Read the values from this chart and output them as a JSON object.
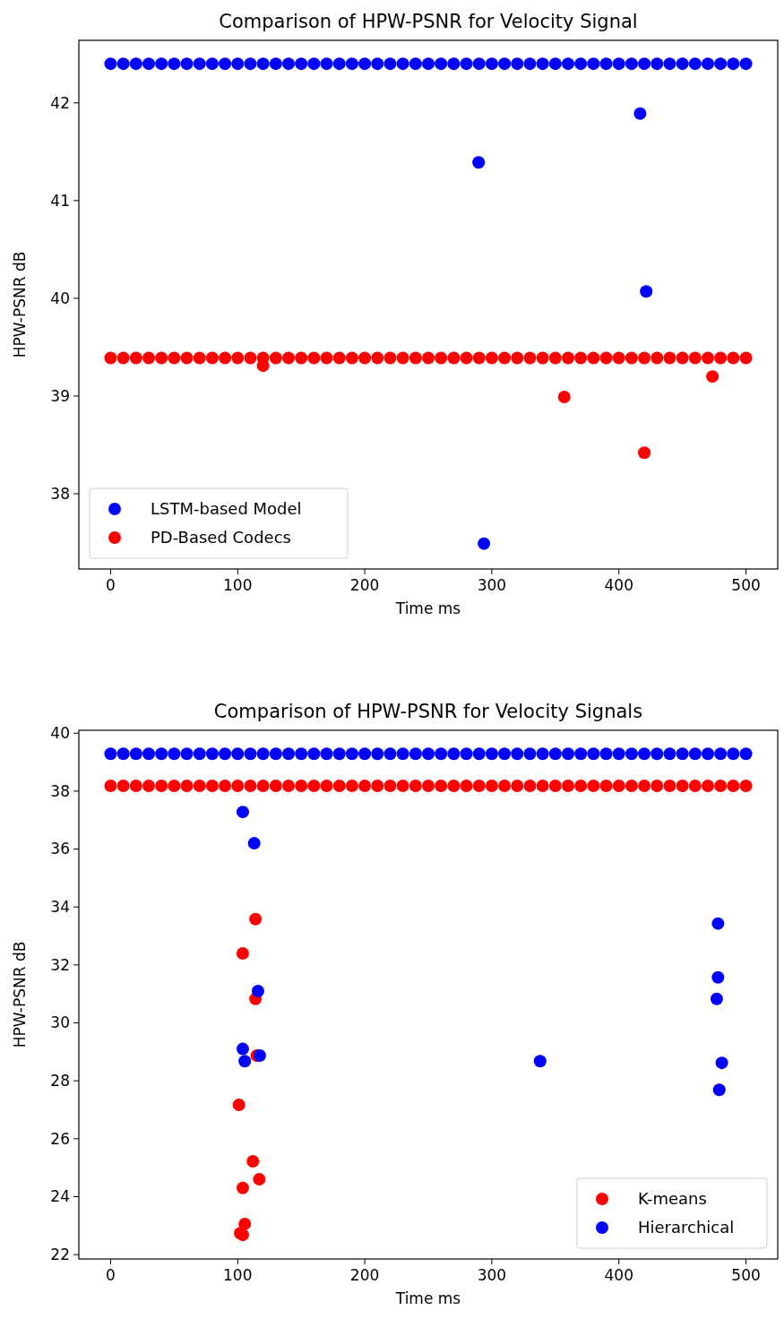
{
  "chart_data": [
    {
      "type": "scatter",
      "title": "Comparison of HPW-PSNR for Velocity Signal",
      "xlabel": "Time ms",
      "ylabel": "HPW-PSNR dB",
      "xlim": [
        -25,
        525
      ],
      "ylim": [
        37.23,
        42.64
      ],
      "xticks": [
        0,
        100,
        200,
        300,
        400,
        500
      ],
      "yticks": [
        38,
        39,
        40,
        41,
        42
      ],
      "legend": "bottom left",
      "marker": "circle",
      "grid": false,
      "series": [
        {
          "name": "LSTM-based Model",
          "color": "#0000ff",
          "x": [
            0,
            10,
            20,
            30,
            40,
            50,
            60,
            70,
            80,
            90,
            100,
            110,
            120,
            130,
            140,
            150,
            160,
            170,
            180,
            190,
            200,
            210,
            220,
            230,
            240,
            250,
            260,
            270,
            280,
            290,
            300,
            310,
            320,
            330,
            340,
            350,
            360,
            370,
            380,
            390,
            400,
            410,
            420,
            430,
            440,
            450,
            460,
            470,
            480,
            490,
            500,
            289.6,
            416.7,
            421.5,
            293.8
          ],
          "values": [
            42.4,
            42.4,
            42.4,
            42.4,
            42.4,
            42.4,
            42.4,
            42.4,
            42.4,
            42.4,
            42.4,
            42.4,
            42.4,
            42.4,
            42.4,
            42.4,
            42.4,
            42.4,
            42.4,
            42.4,
            42.4,
            42.4,
            42.4,
            42.4,
            42.4,
            42.4,
            42.4,
            42.4,
            42.4,
            42.4,
            42.4,
            42.4,
            42.4,
            42.4,
            42.4,
            42.4,
            42.4,
            42.4,
            42.4,
            42.4,
            42.4,
            42.4,
            42.4,
            42.4,
            42.4,
            42.4,
            42.4,
            42.4,
            42.4,
            42.4,
            42.4,
            41.39,
            41.89,
            40.07,
            37.49
          ]
        },
        {
          "name": "PD-Based Codecs",
          "color": "#ff0000",
          "x": [
            0,
            10,
            20,
            30,
            40,
            50,
            60,
            70,
            80,
            90,
            100,
            110,
            120,
            130,
            140,
            150,
            160,
            170,
            180,
            190,
            200,
            210,
            220,
            230,
            240,
            250,
            260,
            270,
            280,
            290,
            300,
            310,
            320,
            330,
            340,
            350,
            360,
            370,
            380,
            390,
            400,
            410,
            420,
            430,
            440,
            450,
            460,
            470,
            480,
            490,
            500,
            120,
            357,
            420,
            473.6
          ],
          "values": [
            39.39,
            39.39,
            39.39,
            39.39,
            39.39,
            39.39,
            39.39,
            39.39,
            39.39,
            39.39,
            39.39,
            39.39,
            39.39,
            39.39,
            39.39,
            39.39,
            39.39,
            39.39,
            39.39,
            39.39,
            39.39,
            39.39,
            39.39,
            39.39,
            39.39,
            39.39,
            39.39,
            39.39,
            39.39,
            39.39,
            39.39,
            39.39,
            39.39,
            39.39,
            39.39,
            39.39,
            39.39,
            39.39,
            39.39,
            39.39,
            39.39,
            39.39,
            39.39,
            39.39,
            39.39,
            39.39,
            39.39,
            39.39,
            39.39,
            39.39,
            39.39,
            39.31,
            38.99,
            38.42,
            39.2
          ]
        }
      ]
    },
    {
      "type": "scatter",
      "title": "Comparison of HPW-PSNR for Velocity Signals",
      "xlabel": "Time ms",
      "ylabel": "HPW-PSNR dB",
      "xlim": [
        -25,
        525
      ],
      "ylim": [
        21.85,
        40.1
      ],
      "xticks": [
        0,
        100,
        200,
        300,
        400,
        500
      ],
      "yticks": [
        22,
        24,
        26,
        28,
        30,
        32,
        34,
        36,
        38,
        40
      ],
      "legend": "bottom right",
      "marker": "circle",
      "grid": false,
      "series": [
        {
          "name": "K-means",
          "color": "#ff0000",
          "x": [
            0,
            10,
            20,
            30,
            40,
            50,
            60,
            70,
            80,
            90,
            100,
            110,
            120,
            130,
            140,
            150,
            160,
            170,
            180,
            190,
            200,
            210,
            220,
            230,
            240,
            250,
            260,
            270,
            280,
            290,
            300,
            310,
            320,
            330,
            340,
            350,
            360,
            370,
            380,
            390,
            400,
            410,
            420,
            430,
            440,
            450,
            460,
            470,
            480,
            490,
            500,
            114,
            104,
            114,
            115,
            101,
            112,
            117,
            104,
            105.6,
            102,
            104
          ],
          "values": [
            38.18,
            38.18,
            38.18,
            38.18,
            38.18,
            38.18,
            38.18,
            38.18,
            38.18,
            38.18,
            38.18,
            38.18,
            38.18,
            38.18,
            38.18,
            38.18,
            38.18,
            38.18,
            38.18,
            38.18,
            38.18,
            38.18,
            38.18,
            38.18,
            38.18,
            38.18,
            38.18,
            38.18,
            38.18,
            38.18,
            38.18,
            38.18,
            38.18,
            38.18,
            38.18,
            38.18,
            38.18,
            38.18,
            38.18,
            38.18,
            38.18,
            38.18,
            38.18,
            38.18,
            38.18,
            38.18,
            38.18,
            38.18,
            38.18,
            38.18,
            38.18,
            33.58,
            32.4,
            30.83,
            28.87,
            27.17,
            25.22,
            24.6,
            24.3,
            23.06,
            22.74,
            22.68
          ]
        },
        {
          "name": "Hierarchical",
          "color": "#0000ff",
          "x": [
            0,
            10,
            20,
            30,
            40,
            50,
            60,
            70,
            80,
            90,
            100,
            110,
            120,
            130,
            140,
            150,
            160,
            170,
            180,
            190,
            200,
            210,
            220,
            230,
            240,
            250,
            260,
            270,
            280,
            290,
            300,
            310,
            320,
            330,
            340,
            350,
            360,
            370,
            380,
            390,
            400,
            410,
            420,
            430,
            440,
            450,
            460,
            470,
            480,
            490,
            500,
            104,
            113,
            116,
            104,
            105.6,
            117.4,
            338,
            478,
            478,
            477,
            481,
            479
          ],
          "values": [
            39.29,
            39.29,
            39.29,
            39.29,
            39.29,
            39.29,
            39.29,
            39.29,
            39.29,
            39.29,
            39.29,
            39.29,
            39.29,
            39.29,
            39.29,
            39.29,
            39.29,
            39.29,
            39.29,
            39.29,
            39.29,
            39.29,
            39.29,
            39.29,
            39.29,
            39.29,
            39.29,
            39.29,
            39.29,
            39.29,
            39.29,
            39.29,
            39.29,
            39.29,
            39.29,
            39.29,
            39.29,
            39.29,
            39.29,
            39.29,
            39.29,
            39.29,
            39.29,
            39.29,
            39.29,
            39.29,
            39.29,
            39.29,
            39.29,
            39.29,
            39.29,
            37.28,
            36.2,
            31.1,
            29.1,
            28.68,
            28.87,
            28.68,
            33.43,
            31.57,
            30.83,
            28.62,
            27.69
          ]
        }
      ]
    }
  ]
}
